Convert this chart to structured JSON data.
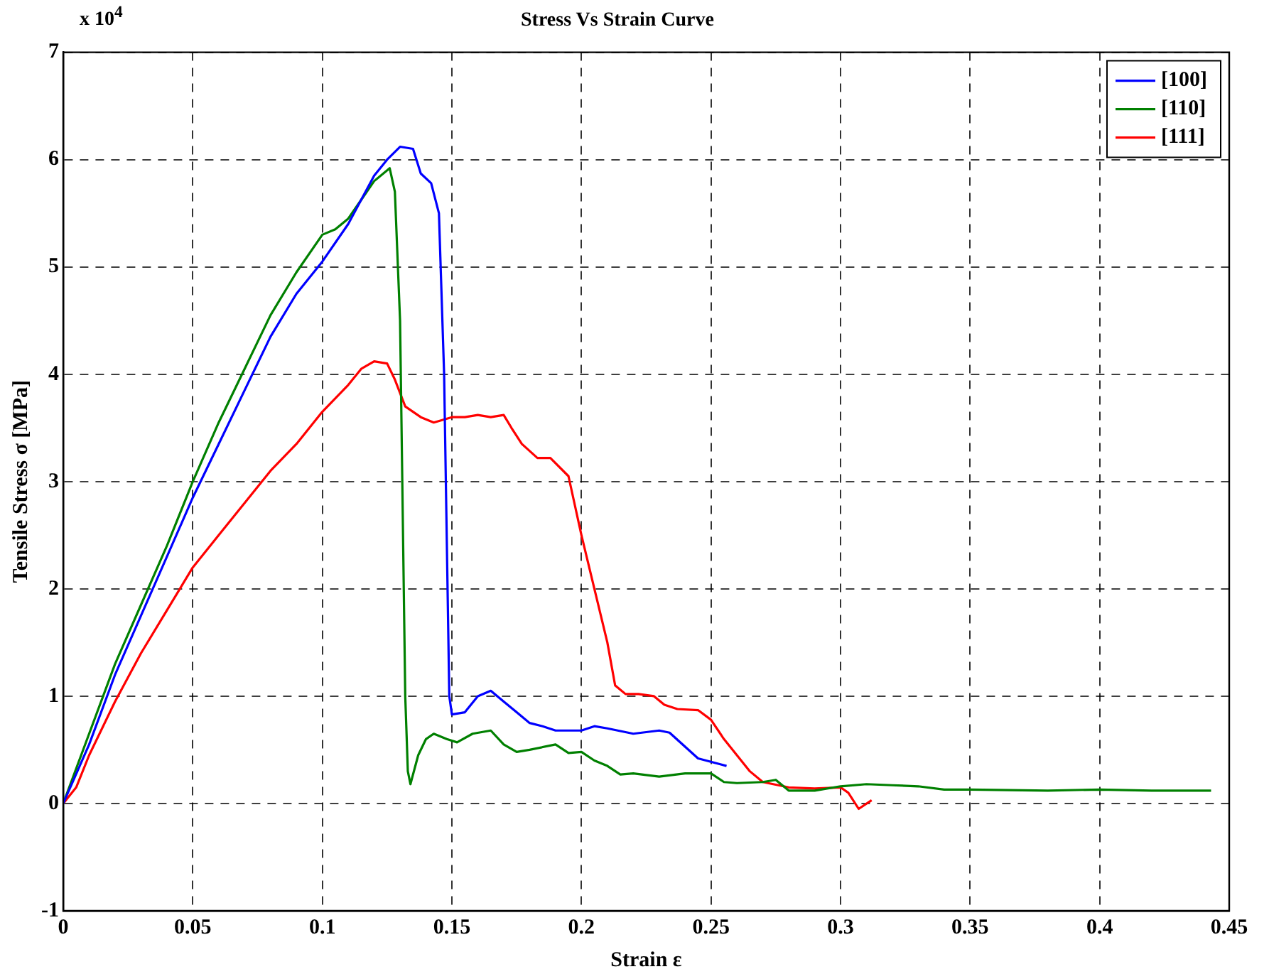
{
  "chart_data": {
    "type": "line",
    "title": "Stress Vs Strain Curve",
    "xlabel": "Strain ε",
    "ylabel": "Tensile Stress σ [MPa]",
    "annotations": [
      "x 10$^{4}$"
    ],
    "xlim": [
      0,
      0.45
    ],
    "xticks": [
      0,
      0.05,
      0.1,
      0.15,
      0.2,
      0.25,
      0.3,
      0.35,
      0.4,
      0.45
    ],
    "ylim": [
      -1,
      7
    ],
    "yticks": [
      -1,
      0,
      1,
      2,
      3,
      4,
      5,
      6,
      7
    ],
    "grid": true,
    "legend": "top right",
    "marker": "none",
    "line_style": "solid",
    "series": [
      {
        "name": "[100]",
        "color": "#0000ff",
        "x": [
          0,
          0.01,
          0.02,
          0.03,
          0.04,
          0.05,
          0.06,
          0.07,
          0.08,
          0.09,
          0.1,
          0.11,
          0.12,
          0.125,
          0.13,
          0.135,
          0.138,
          0.142,
          0.145,
          0.147,
          0.149,
          0.15,
          0.155,
          0.16,
          0.165,
          0.17,
          0.175,
          0.18,
          0.185,
          0.19,
          0.2,
          0.205,
          0.21,
          0.22,
          0.23,
          0.234,
          0.245,
          0.256
        ],
        "values": [
          0,
          0.55,
          1.2,
          1.75,
          2.3,
          2.85,
          3.35,
          3.85,
          4.35,
          4.75,
          5.05,
          5.4,
          5.85,
          6.0,
          6.12,
          6.1,
          5.87,
          5.78,
          5.5,
          4.0,
          1.0,
          0.83,
          0.85,
          1.0,
          1.05,
          0.95,
          0.85,
          0.75,
          0.72,
          0.68,
          0.68,
          0.72,
          0.7,
          0.65,
          0.68,
          0.66,
          0.42,
          0.35
        ]
      },
      {
        "name": "[110]",
        "color": "#008000",
        "x": [
          0,
          0.01,
          0.02,
          0.03,
          0.04,
          0.05,
          0.06,
          0.07,
          0.08,
          0.09,
          0.1,
          0.105,
          0.11,
          0.12,
          0.126,
          0.128,
          0.13,
          0.132,
          0.133,
          0.134,
          0.137,
          0.14,
          0.143,
          0.148,
          0.152,
          0.158,
          0.165,
          0.17,
          0.175,
          0.18,
          0.19,
          0.195,
          0.2,
          0.205,
          0.21,
          0.215,
          0.22,
          0.23,
          0.24,
          0.25,
          0.255,
          0.26,
          0.27,
          0.275,
          0.28,
          0.29,
          0.3,
          0.31,
          0.32,
          0.33,
          0.34,
          0.35,
          0.38,
          0.4,
          0.42,
          0.443
        ],
        "values": [
          0,
          0.65,
          1.3,
          1.85,
          2.4,
          3.0,
          3.55,
          4.05,
          4.55,
          4.95,
          5.3,
          5.35,
          5.45,
          5.8,
          5.92,
          5.7,
          4.5,
          1.0,
          0.3,
          0.18,
          0.45,
          0.6,
          0.65,
          0.6,
          0.57,
          0.65,
          0.68,
          0.55,
          0.48,
          0.5,
          0.55,
          0.47,
          0.48,
          0.4,
          0.35,
          0.27,
          0.28,
          0.25,
          0.28,
          0.28,
          0.2,
          0.19,
          0.2,
          0.22,
          0.12,
          0.12,
          0.16,
          0.18,
          0.17,
          0.16,
          0.13,
          0.13,
          0.12,
          0.13,
          0.12,
          0.12
        ]
      },
      {
        "name": "[111]",
        "color": "#ff0000",
        "x": [
          0,
          0.005,
          0.01,
          0.02,
          0.03,
          0.04,
          0.05,
          0.06,
          0.07,
          0.08,
          0.09,
          0.1,
          0.11,
          0.115,
          0.12,
          0.125,
          0.128,
          0.132,
          0.138,
          0.143,
          0.15,
          0.155,
          0.16,
          0.165,
          0.17,
          0.173,
          0.177,
          0.183,
          0.188,
          0.195,
          0.2,
          0.205,
          0.21,
          0.213,
          0.217,
          0.222,
          0.228,
          0.232,
          0.237,
          0.245,
          0.25,
          0.255,
          0.26,
          0.265,
          0.27,
          0.28,
          0.29,
          0.3,
          0.303,
          0.307,
          0.312
        ],
        "values": [
          0,
          0.15,
          0.45,
          0.95,
          1.4,
          1.8,
          2.2,
          2.5,
          2.8,
          3.1,
          3.35,
          3.65,
          3.9,
          4.05,
          4.12,
          4.1,
          3.95,
          3.7,
          3.6,
          3.55,
          3.6,
          3.6,
          3.62,
          3.6,
          3.62,
          3.5,
          3.35,
          3.22,
          3.22,
          3.05,
          2.5,
          2.0,
          1.5,
          1.1,
          1.02,
          1.02,
          1.0,
          0.92,
          0.88,
          0.87,
          0.78,
          0.6,
          0.45,
          0.3,
          0.2,
          0.15,
          0.14,
          0.15,
          0.1,
          -0.05,
          0.03
        ]
      }
    ]
  }
}
